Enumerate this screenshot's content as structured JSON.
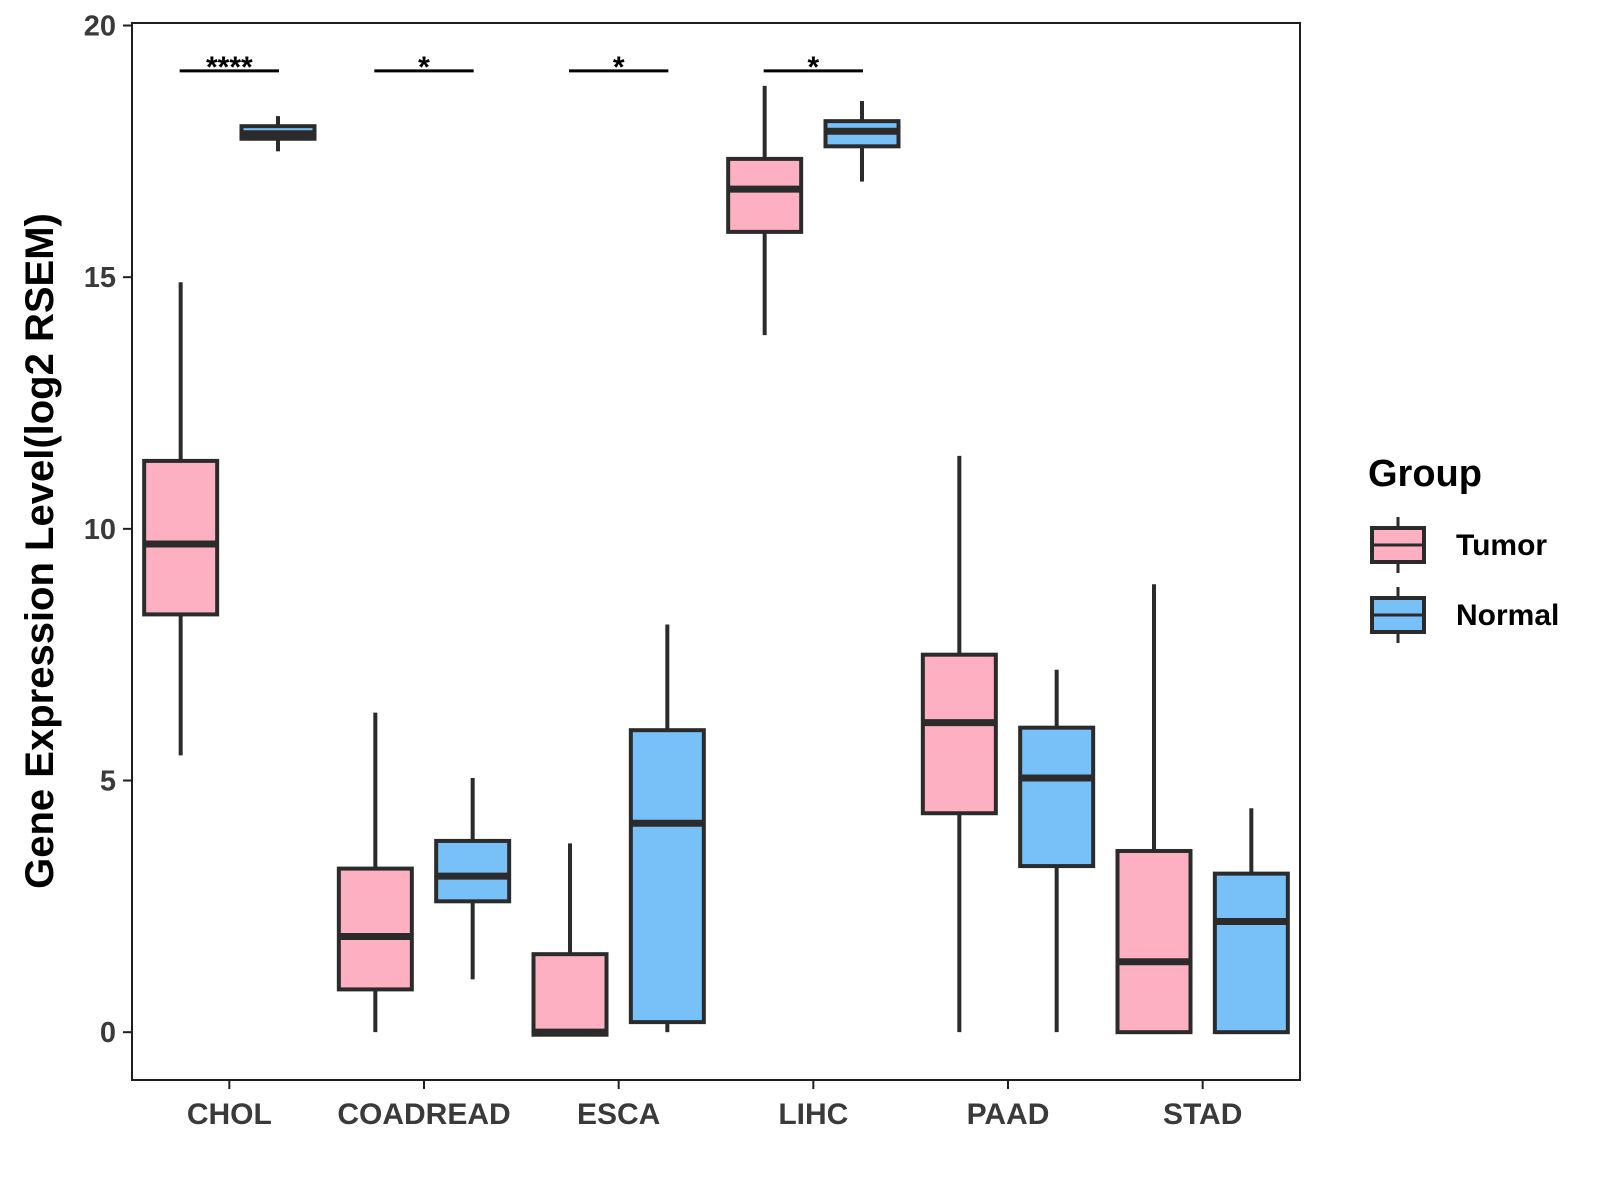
{
  "chart_data": {
    "type": "boxplot",
    "title": "",
    "xlabel": "",
    "ylabel": "Gene Expression Level(log2 RSEM)",
    "ylim": [
      -0.95,
      20.05
    ],
    "yticks": [
      0,
      5,
      10,
      15,
      20
    ],
    "grid": false,
    "categories": [
      "CHOL",
      "COADREAD",
      "ESCA",
      "LIHC",
      "PAAD",
      "STAD"
    ],
    "series": [
      {
        "name": "Tumor",
        "color": "#FDB0C2",
        "boxes": [
          {
            "whisker_low": 5.5,
            "q1": 8.3,
            "median": 9.7,
            "q3": 11.35,
            "whisker_high": 14.9
          },
          {
            "whisker_low": 0.0,
            "q1": 0.85,
            "median": 1.9,
            "q3": 3.25,
            "whisker_high": 6.35
          },
          {
            "whisker_low": -0.05,
            "q1": -0.05,
            "median": 0.0,
            "q3": 1.55,
            "whisker_high": 3.75
          },
          {
            "whisker_low": 13.85,
            "q1": 15.9,
            "median": 16.75,
            "q3": 17.35,
            "whisker_high": 18.8
          },
          {
            "whisker_low": 0.0,
            "q1": 4.35,
            "median": 6.15,
            "q3": 7.5,
            "whisker_high": 11.45
          },
          {
            "whisker_low": 0.0,
            "q1": 0.0,
            "median": 1.4,
            "q3": 3.6,
            "whisker_high": 8.9
          }
        ]
      },
      {
        "name": "Normal",
        "color": "#77C1F8",
        "boxes": [
          {
            "whisker_low": 17.5,
            "q1": 17.75,
            "median": 17.85,
            "q3": 18.0,
            "whisker_high": 18.2
          },
          {
            "whisker_low": 1.05,
            "q1": 2.6,
            "median": 3.1,
            "q3": 3.8,
            "whisker_high": 5.05
          },
          {
            "whisker_low": 0.0,
            "q1": 0.2,
            "median": 4.15,
            "q3": 6.0,
            "whisker_high": 8.1
          },
          {
            "whisker_low": 16.9,
            "q1": 17.6,
            "median": 17.9,
            "q3": 18.1,
            "whisker_high": 18.5
          },
          {
            "whisker_low": 0.0,
            "q1": 3.3,
            "median": 5.05,
            "q3": 6.05,
            "whisker_high": 7.2
          },
          {
            "whisker_low": 0.0,
            "q1": 0.0,
            "median": 2.2,
            "q3": 3.15,
            "whisker_high": 4.45
          }
        ]
      }
    ],
    "significance": [
      {
        "category": "CHOL",
        "label": "****",
        "y": 19.1
      },
      {
        "category": "COADREAD",
        "label": "*",
        "y": 19.1
      },
      {
        "category": "ESCA",
        "label": "*",
        "y": 19.1
      },
      {
        "category": "LIHC",
        "label": "*",
        "y": 19.1
      }
    ],
    "legend": {
      "title": "Group",
      "position": "right",
      "entries": [
        {
          "label": "Tumor",
          "color": "#FDB0C2"
        },
        {
          "label": "Normal",
          "color": "#77C1F8"
        }
      ]
    }
  }
}
